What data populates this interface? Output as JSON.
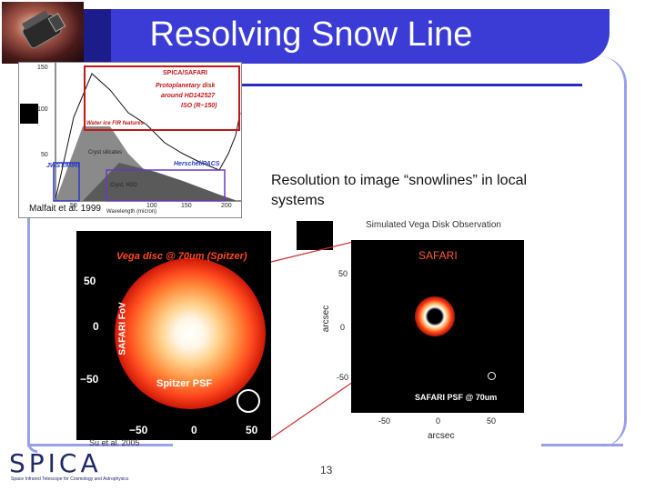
{
  "slide": {
    "title": "Resolving Snow Line",
    "page_number": "13"
  },
  "spectrum_figure": {
    "citation": "Malfait et al. 1999",
    "labels": {
      "spica_safari": "SPICA/SAFARI",
      "disk_line1": "Protoplanetary disk",
      "disk_line2": "around HD142527",
      "iso": "ISO (R~150)",
      "water_ice": "Water ice FIR features",
      "silicates": "Cryst silicates",
      "jwst": "JWST/MIRI",
      "herschel": "Herschel/PACS",
      "cryst_h2o": "Cryst. H2O",
      "wavelength": "Wavelength (micron)"
    },
    "y_ticks": [
      "150",
      "100",
      "50"
    ],
    "x_ticks": [
      "50",
      "100",
      "150",
      "200"
    ]
  },
  "resolution_text": "Resolution to image “snowlines” in local systems",
  "vega_image": {
    "title": "Vega disc @ 70um (Spitzer)",
    "fov_label": "SAFARI FoV",
    "psf_label": "Spitzer PSF",
    "y_ticks": [
      "50",
      "0",
      "−50"
    ],
    "x_ticks": [
      "−50",
      "0",
      "50"
    ],
    "citation": "Su et al. 2005"
  },
  "safari_image": {
    "caption": "Simulated Vega Disk Observation",
    "label": "SAFARI",
    "psf_label": "SAFARI PSF @ 70um",
    "y_ticks": [
      "50",
      "0",
      "-50"
    ],
    "x_ticks": [
      "-50",
      "0",
      "50"
    ],
    "axis_label": "arcsec"
  },
  "logo": {
    "text": "SPICA",
    "subtitle": "Space Infrared Telescope for Cosmology and Astrophysics"
  },
  "colors": {
    "title_bar": "#3b3bd6",
    "frame": "#9aa0e8",
    "accent_red": "#c0181a"
  }
}
